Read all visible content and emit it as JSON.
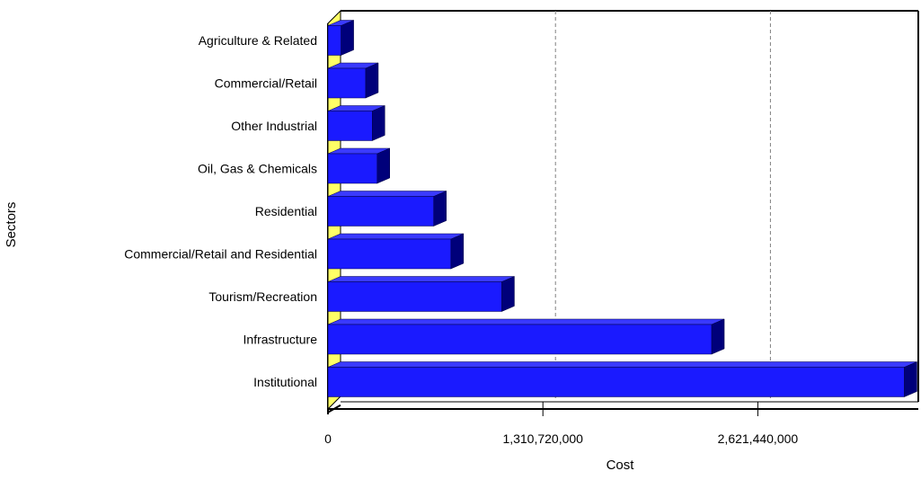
{
  "chart_data": {
    "type": "bar",
    "orientation": "horizontal",
    "ylabel": "Sectors",
    "xlabel": "Cost",
    "categories": [
      "Agriculture & Related",
      "Commercial/Retail",
      "Other Industrial",
      "Oil, Gas & Chemicals",
      "Residential",
      "Commercial/Retail and Residential",
      "Tourism/Recreation",
      "Infrastructure",
      "Institutional"
    ],
    "values": [
      80000000,
      230000000,
      270000000,
      300000000,
      645000000,
      750000000,
      1060000000,
      2340000000,
      3515000000
    ],
    "xlim": [
      0,
      3600000000
    ],
    "x_ticks": [
      0,
      1310720000,
      2621440000
    ],
    "x_tick_labels": [
      "0",
      "1,310,720,000",
      "2,621,440,000"
    ],
    "grid": {
      "x_major": true,
      "style": "dashed"
    },
    "legend": "none",
    "colors": {
      "bar_front": "#1a1aff",
      "bar_top": "#3a3aff",
      "bar_side": "#00007a",
      "wall": "#ffff66",
      "grid": "#808080",
      "axis": "#000000"
    }
  }
}
